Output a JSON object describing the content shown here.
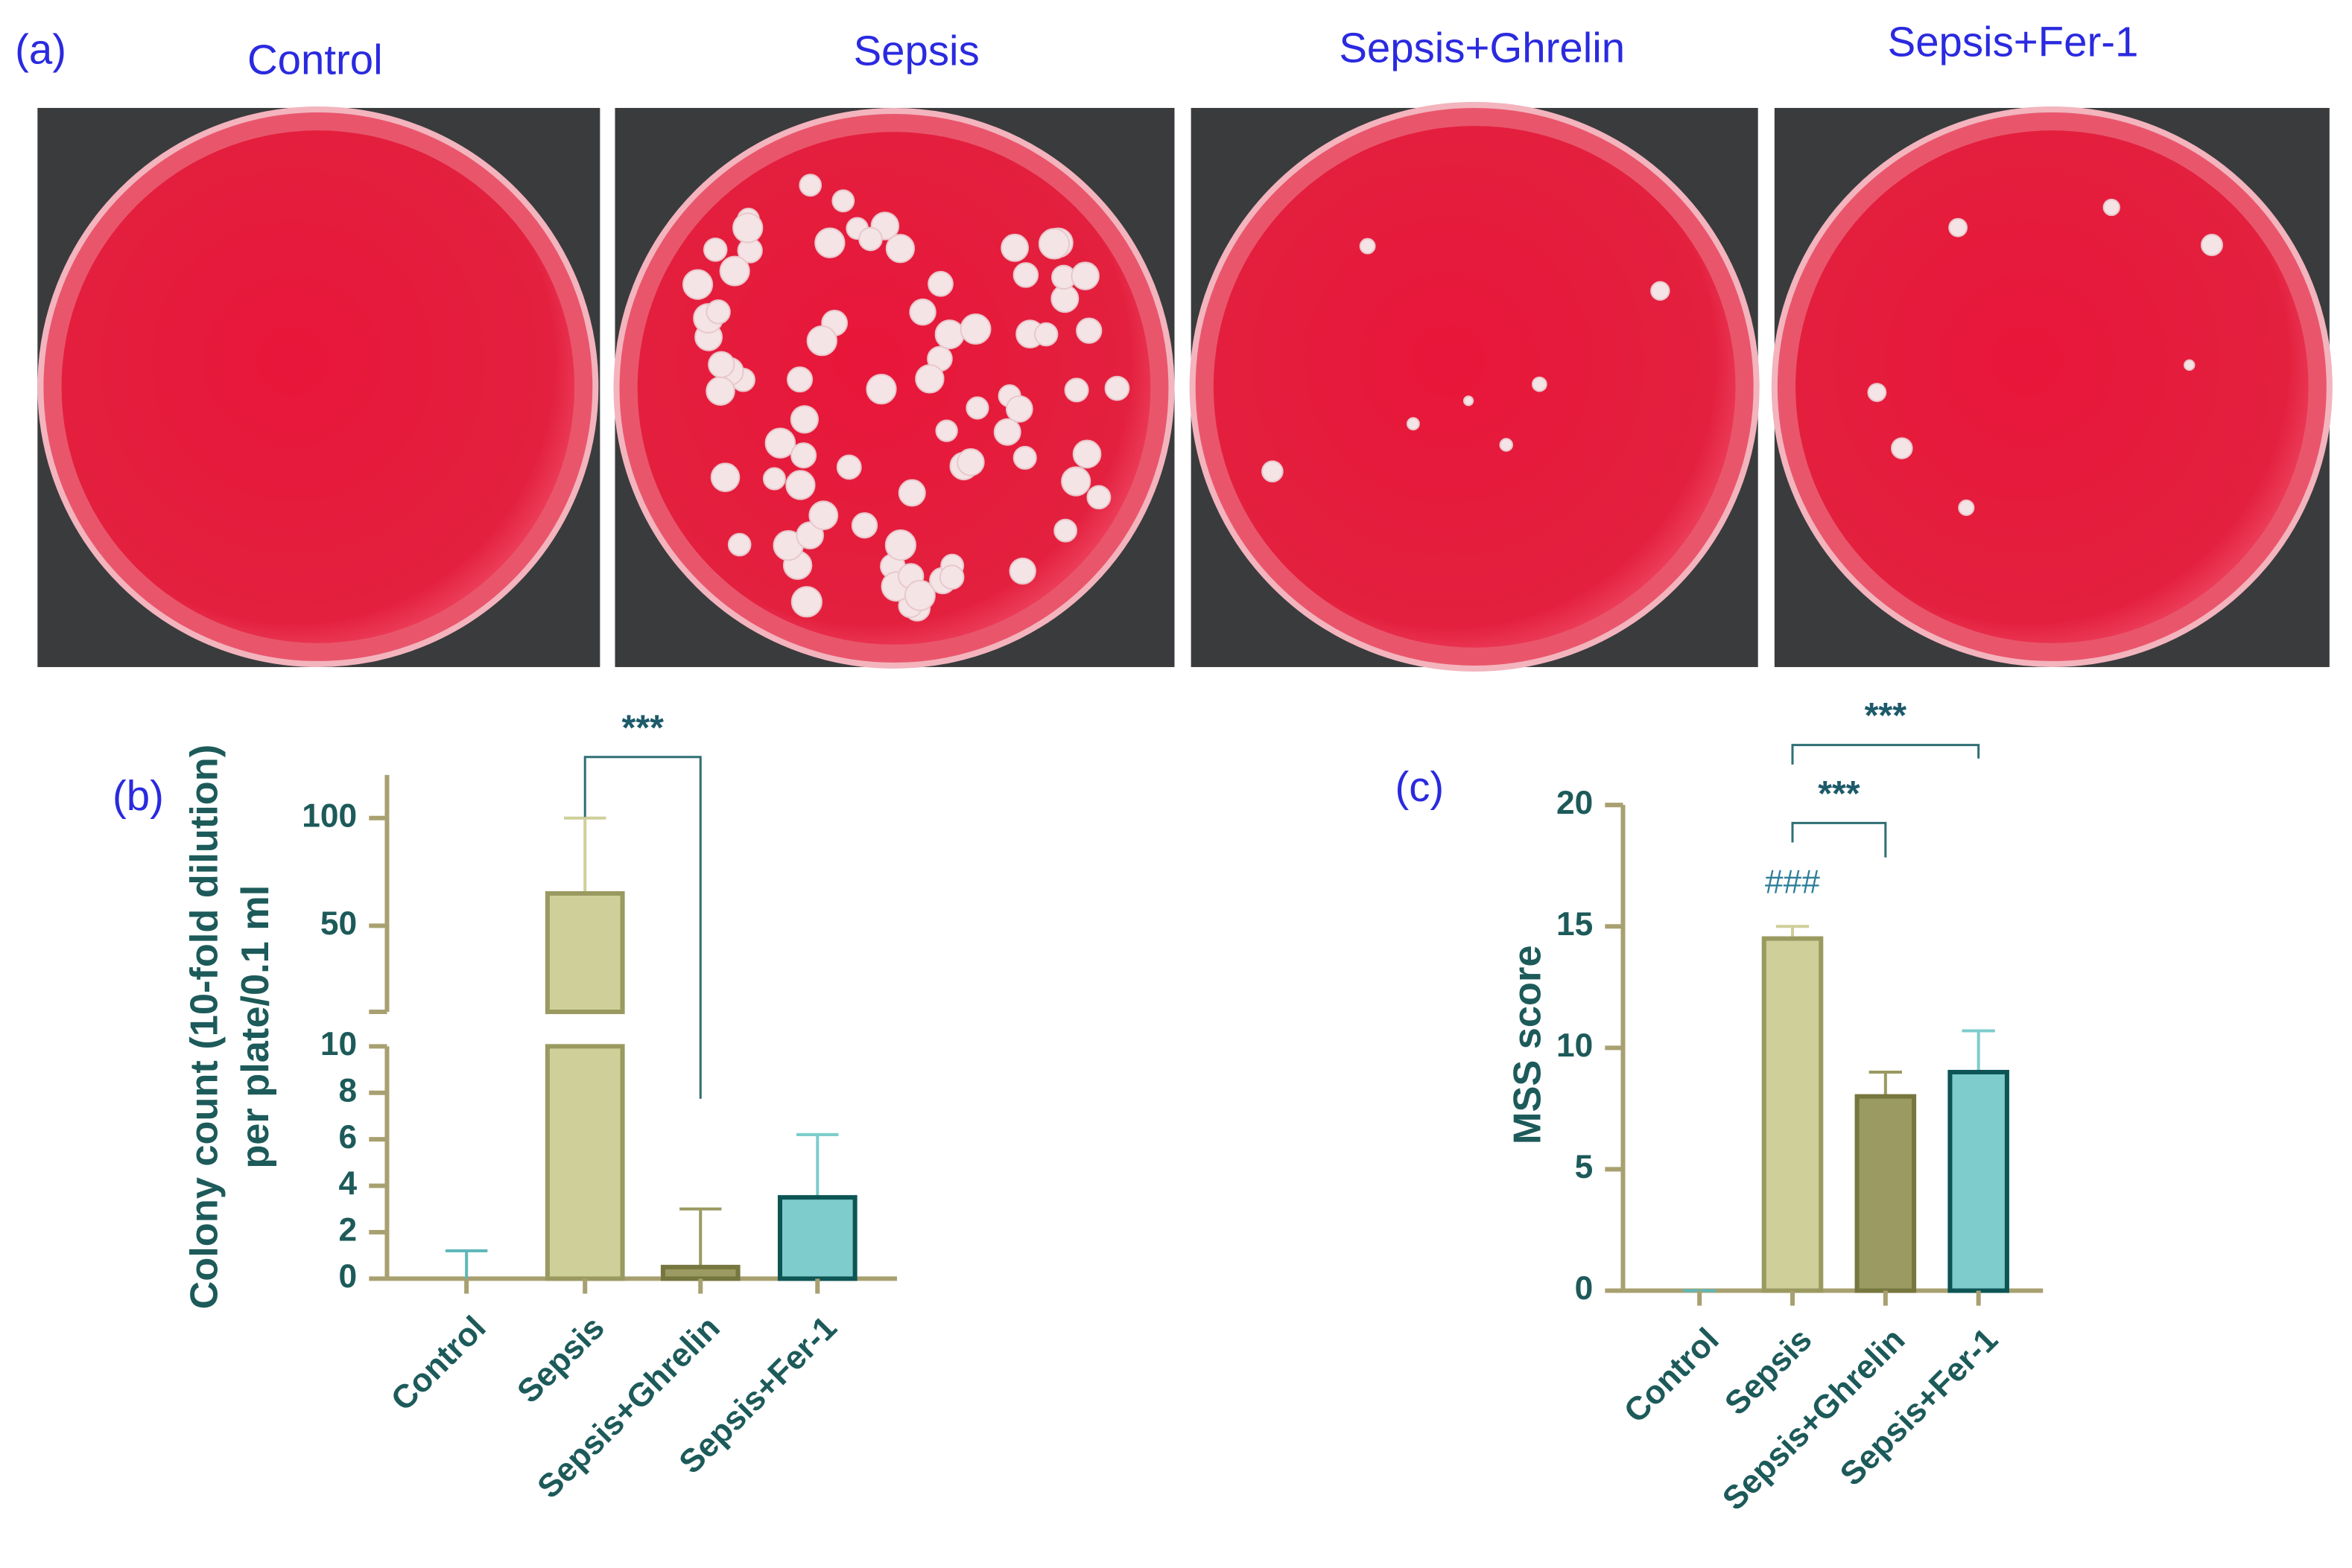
{
  "panel_a": {
    "label": "(a)",
    "titles": [
      "Control",
      "Sepsis",
      "Sepsis+Ghrelin",
      "Sepsis+Fer-1"
    ]
  },
  "chart_data": [
    {
      "type": "bar",
      "panel_label": "(b)",
      "ylabel": [
        "Colony count (10-fold dilution)",
        "per plate/0.1 ml"
      ],
      "categories": [
        "Control",
        "Sepsis",
        "Sepsis+Ghrelin",
        "Sepsis+Fer-1"
      ],
      "values": [
        0,
        65,
        0.5,
        3.5
      ],
      "errors": [
        1.2,
        35,
        2.5,
        2.7
      ],
      "colors": [
        "#5fb8b8",
        "#cfcf9a",
        "#9a9a62",
        "#7ecccc"
      ],
      "edge_colors": [
        "#1a6b6b",
        "#9a9a60",
        "#76763f",
        "#0d5555"
      ],
      "ylim": [
        0,
        120
      ],
      "ybreak": 10,
      "yticks": [
        0,
        2,
        4,
        6,
        8,
        10,
        50,
        100
      ],
      "annotations": [
        {
          "text": "***",
          "from": 1,
          "to": 2
        }
      ]
    },
    {
      "type": "bar",
      "panel_label": "(c)",
      "ylabel": [
        "MSS score"
      ],
      "categories": [
        "Control",
        "Sepsis",
        "Sepsis+Ghrelin",
        "Sepsis+Fer-1"
      ],
      "values": [
        0,
        14.5,
        8,
        9
      ],
      "errors": [
        0,
        0.5,
        1,
        1.7
      ],
      "colors": [
        "#5fb8b8",
        "#cfcf9a",
        "#9a9a62",
        "#7ecccc"
      ],
      "edge_colors": [
        "#1a6b6b",
        "#9a9a60",
        "#76763f",
        "#0d5555"
      ],
      "ylim": [
        0,
        20
      ],
      "yticks": [
        0,
        5,
        10,
        15,
        20
      ],
      "annotations": [
        {
          "text": "###",
          "category": 1
        },
        {
          "text": "***",
          "from": 1,
          "to": 2
        },
        {
          "text": "***",
          "from": 1,
          "to": 3
        }
      ]
    }
  ]
}
